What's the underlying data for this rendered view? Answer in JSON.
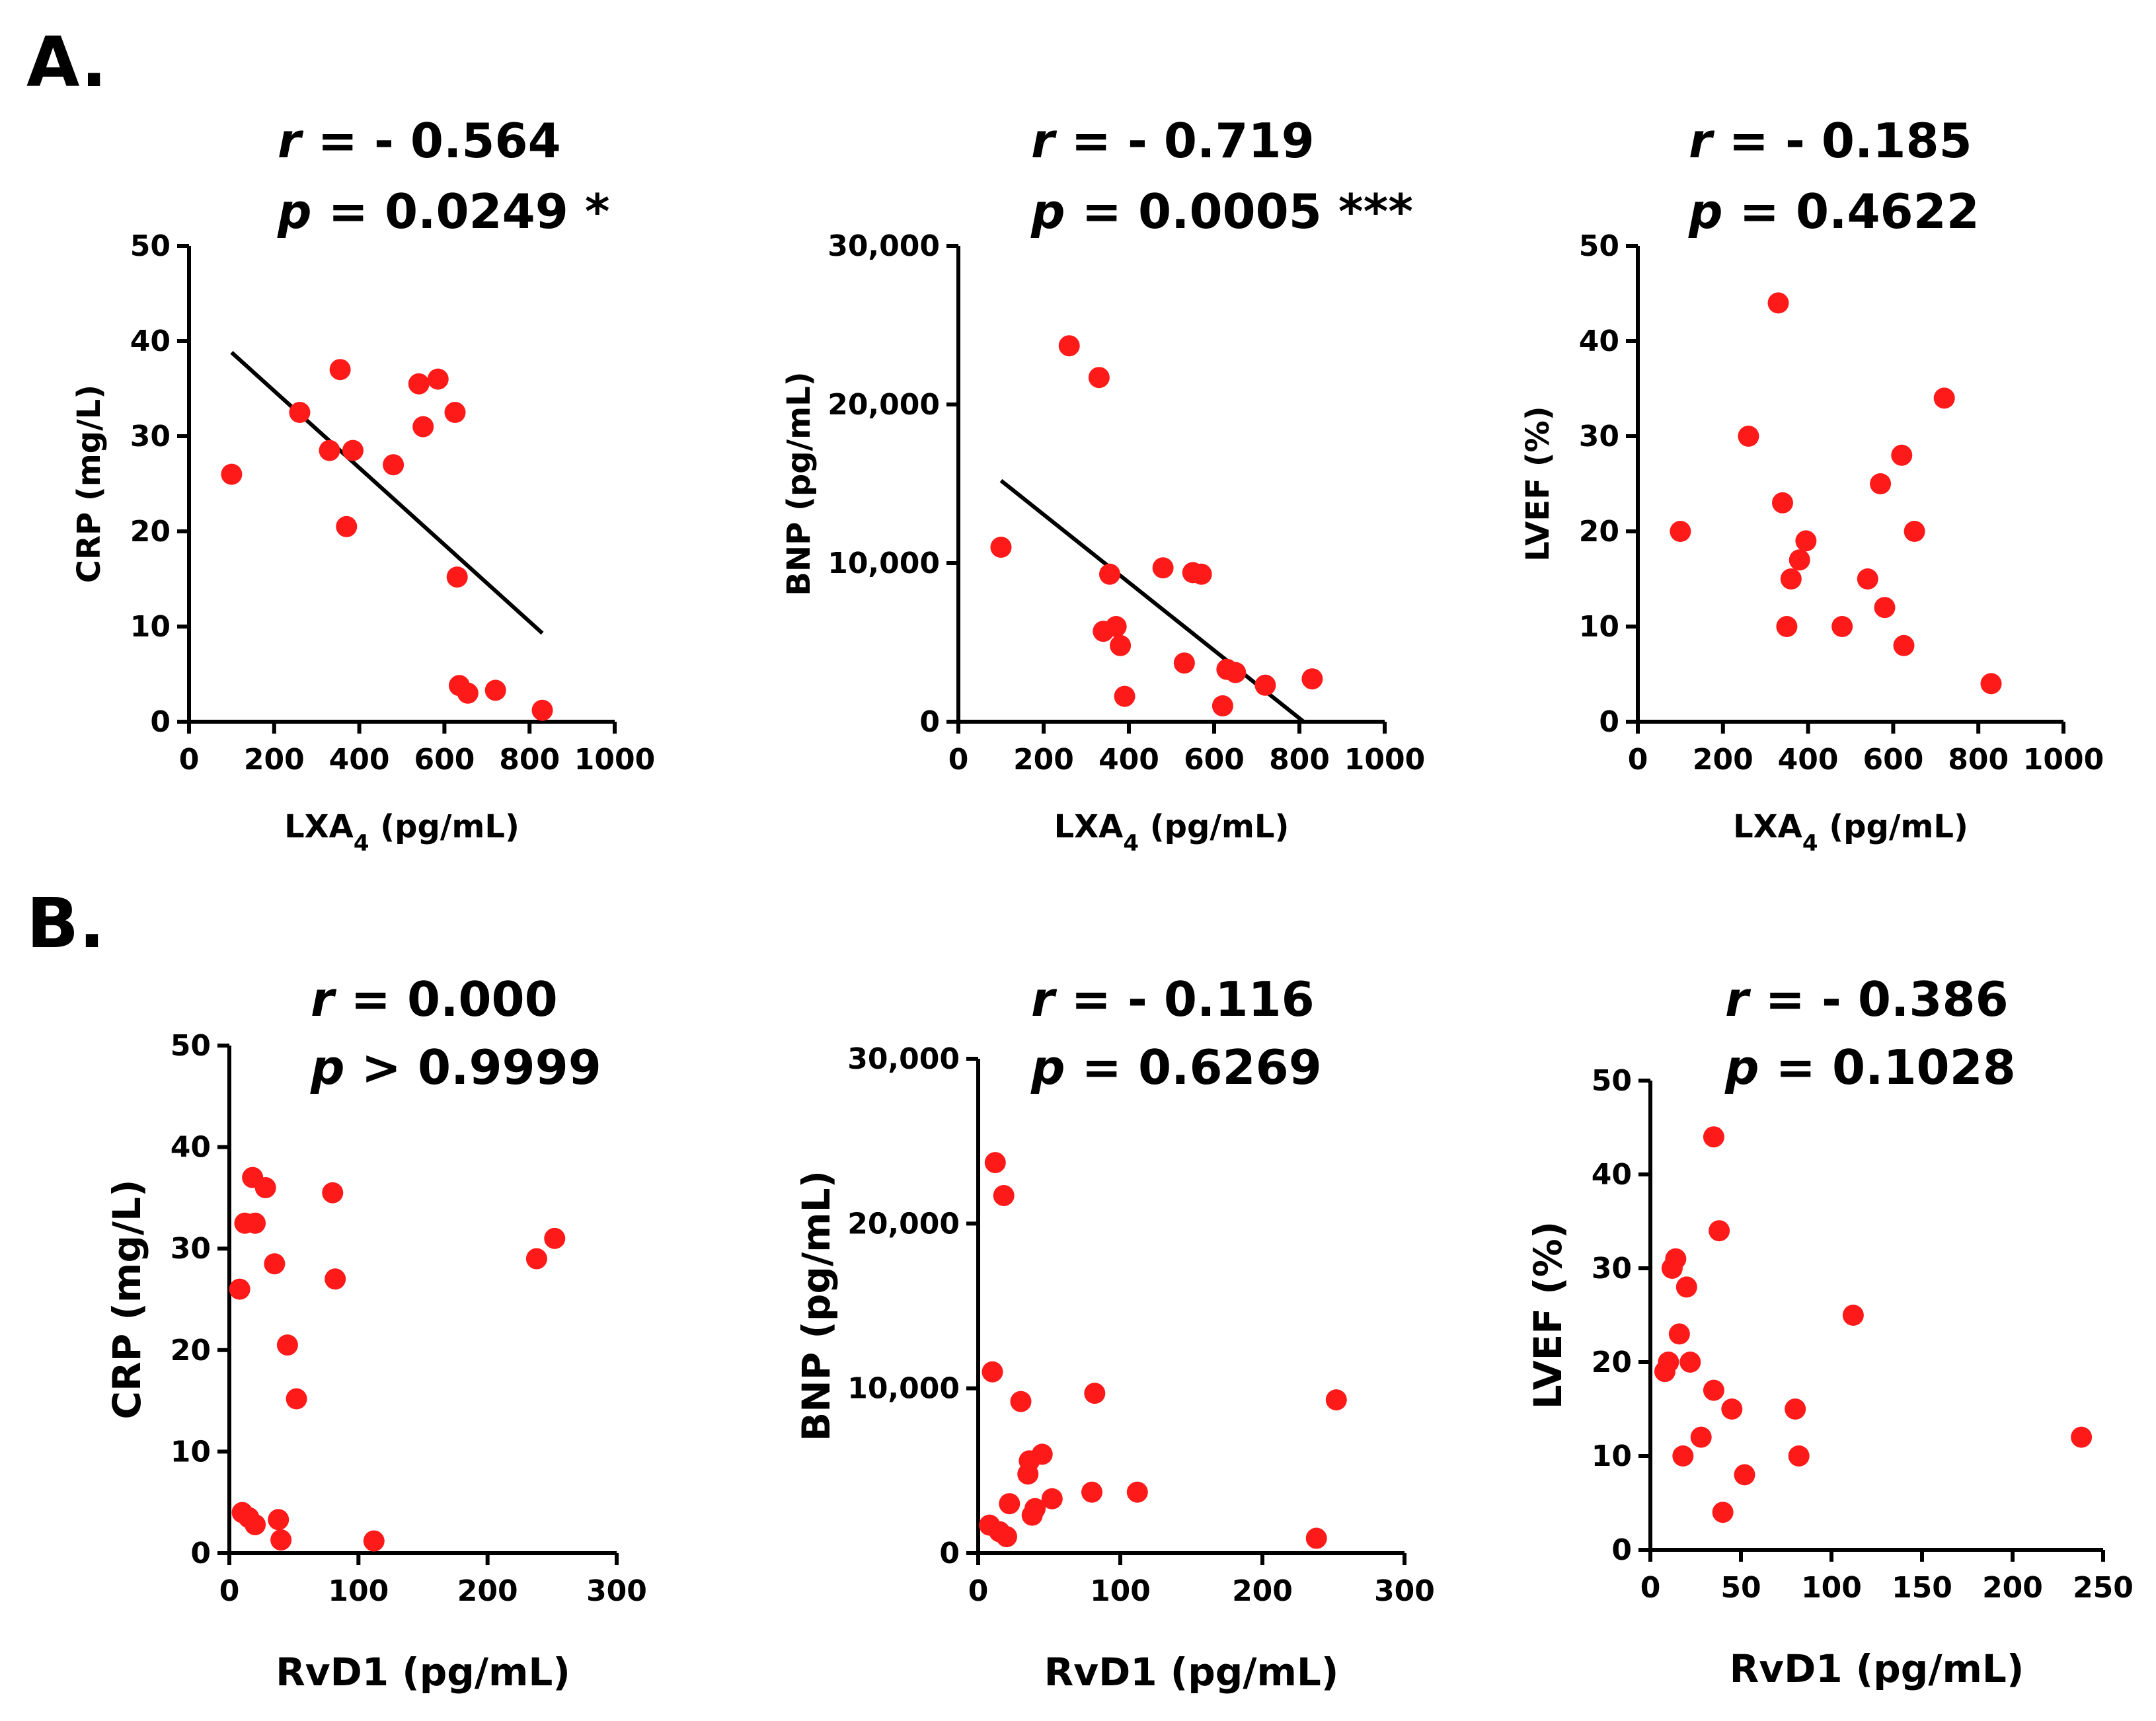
{
  "panels": [
    {
      "label": "A."
    },
    {
      "label": "B."
    }
  ],
  "colors": {
    "points": "#ff1a1a",
    "axis": "#000000",
    "fit_line": "#000000"
  },
  "chart_data": [
    {
      "type": "scatter",
      "panel": "A.",
      "r_symbol": "r",
      "r_text": "= - 0.564",
      "p_symbol": "p",
      "p_text": "= 0.0249 *",
      "xlabel": "LXA",
      "xlabel_sub": "4",
      "xlabel_unit": "(pg/mL)",
      "ylabel": "CRP (mg/L)",
      "xlim": [
        0,
        1000
      ],
      "ylim": [
        0,
        50
      ],
      "xticks": [
        0,
        200,
        400,
        600,
        800,
        1000
      ],
      "xtick_labels": [
        "0",
        "200",
        "400",
        "600",
        "800",
        "1000"
      ],
      "yticks": [
        0,
        10,
        20,
        30,
        40,
        50
      ],
      "ytick_labels": [
        "0",
        "10",
        "20",
        "30",
        "40",
        "50"
      ],
      "x": [
        100,
        260,
        330,
        355,
        370,
        385,
        480,
        540,
        550,
        585,
        625,
        630,
        635,
        655,
        720,
        830
      ],
      "y": [
        26,
        32.5,
        28.5,
        37,
        20.5,
        28.5,
        27,
        35.5,
        31,
        36,
        32.5,
        15.2,
        3.8,
        3,
        3.3,
        1.2
      ],
      "fit_line": {
        "x": [
          100,
          830
        ],
        "y": [
          38.8,
          9.3
        ]
      }
    },
    {
      "type": "scatter",
      "panel": "A.",
      "r_symbol": "r",
      "r_text": "= - 0.719",
      "p_symbol": "p",
      "p_text": "= 0.0005 ***",
      "xlabel": "LXA",
      "xlabel_sub": "4",
      "xlabel_unit": "(pg/mL)",
      "ylabel": "BNP (pg/mL)",
      "xlim": [
        0,
        1000
      ],
      "ylim": [
        0,
        30000
      ],
      "xticks": [
        0,
        200,
        400,
        600,
        800,
        1000
      ],
      "xtick_labels": [
        "0",
        "200",
        "400",
        "600",
        "800",
        "1000"
      ],
      "yticks": [
        0,
        10000,
        20000,
        30000
      ],
      "ytick_labels": [
        "0",
        "10,000",
        "20,000",
        "30,000"
      ],
      "x": [
        100,
        260,
        330,
        340,
        355,
        370,
        380,
        390,
        480,
        530,
        550,
        570,
        620,
        630,
        650,
        720,
        830
      ],
      "y": [
        11000,
        23700,
        21700,
        5700,
        9300,
        6000,
        4800,
        1600,
        9700,
        3700,
        9400,
        9300,
        1000,
        3300,
        3100,
        2300,
        2700
      ],
      "fit_line": {
        "x": [
          100,
          810
        ],
        "y": [
          15200,
          0
        ]
      }
    },
    {
      "type": "scatter",
      "panel": "A.",
      "r_symbol": "r",
      "r_text": "= - 0.185",
      "p_symbol": "p",
      "p_text": "= 0.4622",
      "xlabel": "LXA",
      "xlabel_sub": "4",
      "xlabel_unit": "(pg/mL)",
      "ylabel": "LVEF (%)",
      "xlim": [
        0,
        1000
      ],
      "ylim": [
        0,
        50
      ],
      "xticks": [
        0,
        200,
        400,
        600,
        800,
        1000
      ],
      "xtick_labels": [
        "0",
        "200",
        "400",
        "600",
        "800",
        "1000"
      ],
      "yticks": [
        0,
        10,
        20,
        30,
        40,
        50
      ],
      "ytick_labels": [
        "0",
        "10",
        "20",
        "30",
        "40",
        "50"
      ],
      "x": [
        100,
        260,
        330,
        340,
        350,
        360,
        380,
        395,
        480,
        540,
        570,
        580,
        620,
        625,
        650,
        720,
        830
      ],
      "y": [
        20,
        30,
        44,
        23,
        10,
        15,
        17,
        19,
        10,
        15,
        25,
        12,
        28,
        8,
        20,
        34,
        4
      ]
    },
    {
      "type": "scatter",
      "panel": "B.",
      "r_symbol": "r",
      "r_text": "= 0.000",
      "p_symbol": "p",
      "p_text": "> 0.9999",
      "xlabel": "RvD1",
      "xlabel_unit": "(pg/mL)",
      "ylabel": "CRP (mg/L)",
      "xlim": [
        0,
        300
      ],
      "ylim": [
        0,
        50
      ],
      "xticks": [
        0,
        100,
        200,
        300
      ],
      "xtick_labels": [
        "0",
        "100",
        "200",
        "300"
      ],
      "yticks": [
        0,
        10,
        20,
        30,
        40,
        50
      ],
      "ytick_labels": [
        "0",
        "10",
        "20",
        "30",
        "40",
        "50"
      ],
      "x": [
        8,
        10,
        12,
        15,
        18,
        20,
        20,
        28,
        35,
        38,
        40,
        45,
        52,
        80,
        82,
        112,
        238,
        252
      ],
      "y": [
        26,
        4,
        32.5,
        3.5,
        37,
        2.8,
        32.5,
        36,
        28.5,
        3.3,
        1.3,
        20.5,
        15.2,
        35.5,
        27,
        1.2,
        29,
        31
      ]
    },
    {
      "type": "scatter",
      "panel": "B.",
      "r_symbol": "r",
      "r_text": "= - 0.116",
      "p_symbol": "p",
      "p_text": "= 0.6269",
      "xlabel": "RvD1",
      "xlabel_unit": "(pg/mL)",
      "ylabel": "BNP (pg/mL)",
      "xlim": [
        0,
        300
      ],
      "ylim": [
        0,
        30000
      ],
      "xticks": [
        0,
        100,
        200,
        300
      ],
      "xtick_labels": [
        "0",
        "100",
        "200",
        "300"
      ],
      "yticks": [
        0,
        10000,
        20000,
        30000
      ],
      "ytick_labels": [
        "0",
        "10,000",
        "20,000",
        "30,000"
      ],
      "x": [
        8,
        10,
        12,
        15,
        18,
        20,
        22,
        30,
        35,
        36,
        38,
        40,
        45,
        52,
        80,
        82,
        112,
        238,
        252
      ],
      "y": [
        1700,
        11000,
        23700,
        1300,
        21700,
        1000,
        3000,
        9200,
        4800,
        5600,
        2300,
        2700,
        6000,
        3300,
        3700,
        9700,
        3700,
        900,
        9300
      ]
    },
    {
      "type": "scatter",
      "panel": "B.",
      "r_symbol": "r",
      "r_text": "= - 0.386",
      "p_symbol": "p",
      "p_text": "= 0.1028",
      "xlabel": "RvD1",
      "xlabel_unit": "(pg/mL)",
      "ylabel": "LVEF (%)",
      "xlim": [
        0,
        250
      ],
      "ylim": [
        0,
        50
      ],
      "xticks": [
        0,
        50,
        100,
        150,
        200,
        250
      ],
      "xtick_labels": [
        "0",
        "50",
        "100",
        "150",
        "200",
        "250"
      ],
      "yticks": [
        0,
        10,
        20,
        30,
        40,
        50
      ],
      "ytick_labels": [
        "0",
        "10",
        "20",
        "30",
        "40",
        "50"
      ],
      "x": [
        8,
        10,
        12,
        14,
        16,
        18,
        20,
        22,
        28,
        35,
        35,
        38,
        40,
        45,
        52,
        80,
        82,
        112,
        238
      ],
      "y": [
        19,
        20,
        30,
        31,
        23,
        10,
        28,
        20,
        12,
        17,
        44,
        34,
        4,
        15,
        8,
        15,
        10,
        25,
        12
      ]
    }
  ]
}
